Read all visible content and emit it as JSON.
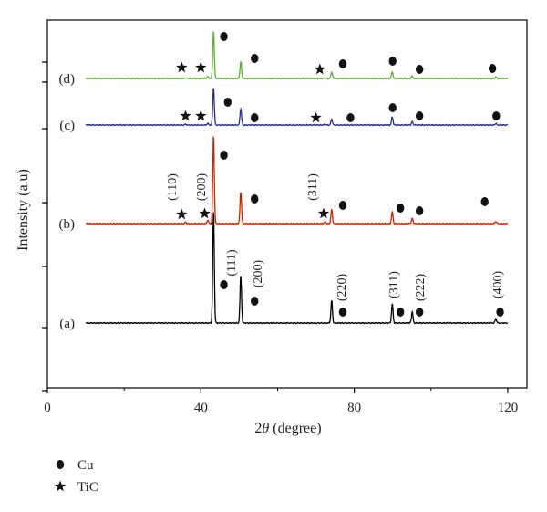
{
  "chart_data": {
    "type": "line",
    "title": "",
    "xlabel": "2θ (degree)",
    "ylabel": "Intensity (a.u)",
    "xlim": [
      0,
      125
    ],
    "x_ticks": [
      0,
      40,
      80,
      120
    ],
    "y_ticks_visible": false,
    "grid": false,
    "legend_position": "bottom-left",
    "legend": [
      {
        "marker": "circle",
        "label": "Cu"
      },
      {
        "marker": "star",
        "label": "TiC"
      }
    ],
    "series": [
      {
        "label": "(a)",
        "color": "#000000",
        "peaks": [
          [
            43.3,
            1.0
          ],
          [
            50.4,
            0.42
          ],
          [
            74.1,
            0.2
          ],
          [
            89.9,
            0.17
          ],
          [
            95.1,
            0.1
          ],
          [
            116.9,
            0.04
          ]
        ],
        "cu_markers": [
          46,
          54,
          77,
          92,
          97,
          118
        ],
        "tic_markers": [],
        "peak_labels": [
          "(111)",
          "(200)",
          "(220)",
          "(311)",
          "(222)",
          "(400)"
        ]
      },
      {
        "label": "(b)",
        "color": "#cc2200",
        "peaks": [
          [
            36.0,
            0.015
          ],
          [
            41.8,
            0.04
          ],
          [
            43.3,
            1.0
          ],
          [
            50.4,
            0.36
          ],
          [
            72.4,
            0.02
          ],
          [
            74.1,
            0.16
          ],
          [
            89.9,
            0.13
          ],
          [
            95.1,
            0.06
          ],
          [
            116.9,
            0.025
          ]
        ],
        "cu_markers": [
          46,
          54,
          77,
          92,
          97,
          114
        ],
        "tic_markers": [
          35,
          41,
          72
        ],
        "peak_labels": [
          "(110)",
          "(200)",
          "(311)"
        ]
      },
      {
        "label": "(c)",
        "color": "#2b2b8c",
        "peaks": [
          [
            36.0,
            0.015
          ],
          [
            41.8,
            0.03
          ],
          [
            43.3,
            0.7
          ],
          [
            50.4,
            0.31
          ],
          [
            72.4,
            0.015
          ],
          [
            74.1,
            0.11
          ],
          [
            89.9,
            0.15
          ],
          [
            95.1,
            0.06
          ],
          [
            116.9,
            0.03
          ]
        ],
        "cu_markers": [
          47,
          54,
          79,
          90,
          97,
          117
        ],
        "tic_markers": [
          36,
          40,
          70
        ],
        "peak_labels": []
      },
      {
        "label": "(d)",
        "color": "#5fae36",
        "peaks": [
          [
            36.0,
            0.015
          ],
          [
            41.8,
            0.04
          ],
          [
            43.3,
            1.0
          ],
          [
            50.4,
            0.36
          ],
          [
            72.4,
            0.015
          ],
          [
            74.1,
            0.14
          ],
          [
            89.9,
            0.14
          ],
          [
            95.1,
            0.05
          ],
          [
            116.9,
            0.03
          ]
        ],
        "cu_markers": [
          46,
          54,
          77,
          90,
          97,
          116
        ],
        "tic_markers": [
          35,
          40,
          71
        ],
        "peak_labels": []
      }
    ]
  }
}
